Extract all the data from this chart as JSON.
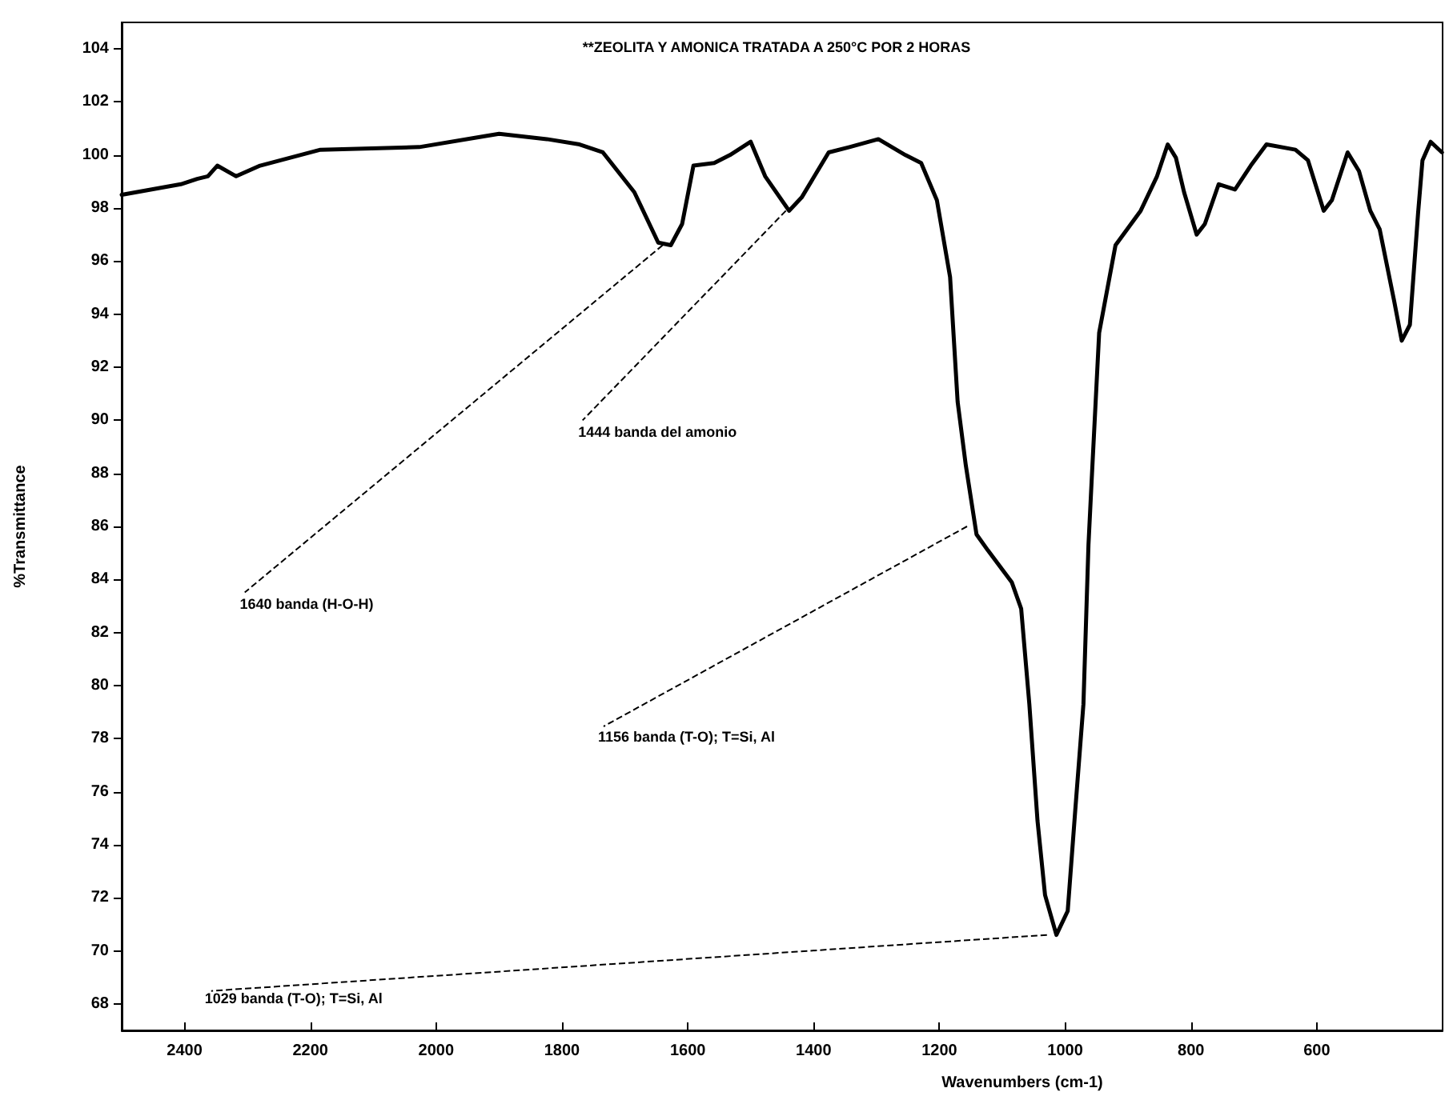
{
  "chart_data": {
    "type": "line",
    "title": "**ZEOLITA Y AMONICA TRATADA A 250°C POR 2 HORAS",
    "xlabel": "Wavenumbers (cm-1)",
    "ylabel": "%Transmittance",
    "x": [
      2500,
      2406,
      2380,
      2363,
      2348,
      2318,
      2280,
      2184,
      2027,
      1925,
      1900,
      1824,
      1772,
      1735,
      1685,
      1647,
      1627,
      1609,
      1591,
      1558,
      1533,
      1500,
      1477,
      1439,
      1419,
      1376,
      1343,
      1297,
      1254,
      1229,
      1204,
      1183,
      1171,
      1158,
      1141,
      1123,
      1085,
      1070,
      1057,
      1044,
      1032,
      1014,
      996,
      984,
      971,
      963,
      958,
      946,
      920,
      880,
      854,
      837,
      824,
      811,
      791,
      778,
      756,
      730,
      705,
      680,
      634,
      614,
      589,
      576,
      551,
      533,
      515,
      500,
      477,
      465,
      452,
      439,
      432,
      419,
      401
    ],
    "series": [
      {
        "color": "#000000",
        "values": [
          98.5,
          98.9,
          99.1,
          99.2,
          99.6,
          99.2,
          99.6,
          100.2,
          100.3,
          100.7,
          100.8,
          100.6,
          100.4,
          100.1,
          98.6,
          96.7,
          96.6,
          97.4,
          99.6,
          99.7,
          100.0,
          100.5,
          99.2,
          97.9,
          98.4,
          100.1,
          100.3,
          100.6,
          100.0,
          99.7,
          98.3,
          95.4,
          90.7,
          88.3,
          85.7,
          85.1,
          83.9,
          82.9,
          79.3,
          74.9,
          72.1,
          70.6,
          71.5,
          75.3,
          79.3,
          85.3,
          87.7,
          93.3,
          96.6,
          97.9,
          99.2,
          100.4,
          99.9,
          98.6,
          97.0,
          97.4,
          98.9,
          98.7,
          99.6,
          100.4,
          100.2,
          99.8,
          97.9,
          98.3,
          100.1,
          99.4,
          97.9,
          97.2,
          94.5,
          93.0,
          93.6,
          97.8,
          99.8,
          100.5,
          100.1
        ]
      }
    ],
    "xlim": [
      2500,
      400
    ],
    "xticks": [
      2400,
      2200,
      2000,
      1800,
      1600,
      1400,
      1200,
      1000,
      800,
      600
    ],
    "ylim": [
      67,
      105
    ],
    "yticks": [
      68,
      70,
      72,
      74,
      76,
      78,
      80,
      82,
      84,
      86,
      88,
      90,
      92,
      94,
      96,
      98,
      100,
      102,
      104
    ],
    "annotations": [
      {
        "text": "1640 banda (H-O-H)",
        "x": 1640,
        "y": 96.6
      },
      {
        "text": "1444 banda del amonio",
        "x": 1444,
        "y": 97.9
      },
      {
        "text": "1156 banda (T-O); T=Si, Al",
        "x": 1156,
        "y": 86
      },
      {
        "text": "1029 banda (T-O); T=Si, Al",
        "x": 1029,
        "y": 70.6
      }
    ],
    "grid": false,
    "marker": "none",
    "line_style": "solid"
  }
}
